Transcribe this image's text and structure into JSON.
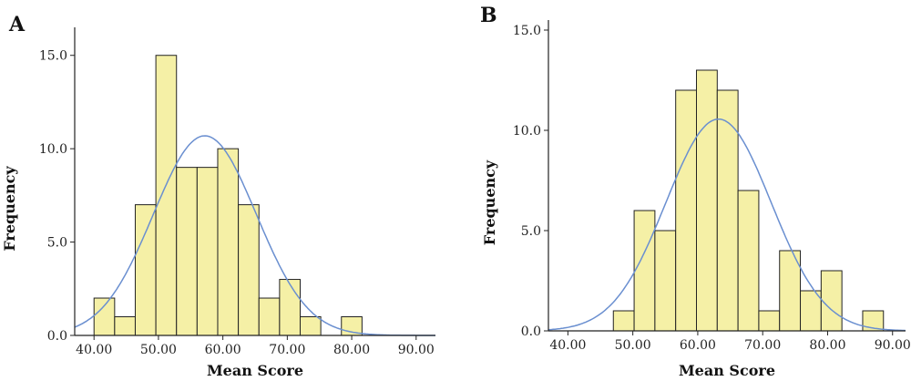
{
  "chart_data": [
    {
      "type": "bar",
      "panel_label": "A",
      "xlabel": "Mean Score",
      "ylabel": "Frequency",
      "xlim": [
        37,
        93
      ],
      "ylim": [
        0,
        16.5
      ],
      "xticks": [
        40,
        50,
        60,
        70,
        80,
        90
      ],
      "xtick_labels": [
        "40.00",
        "50.00",
        "60.00",
        "70.00",
        "80.00",
        "90.00"
      ],
      "yticks": [
        0,
        5,
        10,
        15
      ],
      "ytick_labels": [
        "0.0",
        "5.0",
        "10.0",
        "15.0"
      ],
      "bin_edges": [
        40,
        43.2,
        46.4,
        49.6,
        52.8,
        56,
        59.2,
        62.4,
        65.6,
        68.8,
        72,
        75.2,
        78.4,
        81.6
      ],
      "values": [
        2,
        1,
        7,
        15,
        9,
        9,
        10,
        7,
        2,
        3,
        1,
        0,
        1
      ],
      "normal_curve": {
        "mean": 57.2,
        "sd": 8.0,
        "n": 67,
        "bin_width": 3.2
      },
      "bar_color": "#f5f0a6",
      "curve_color": "#6a8fd0",
      "grid": false
    },
    {
      "type": "bar",
      "panel_label": "B",
      "xlabel": "Mean Score",
      "ylabel": "Frequency",
      "xlim": [
        37,
        92
      ],
      "ylim": [
        0,
        15.5
      ],
      "xticks": [
        40,
        50,
        60,
        70,
        80,
        90
      ],
      "xtick_labels": [
        "40.00",
        "50.00",
        "60.00",
        "70.00",
        "80.00",
        "90.00"
      ],
      "yticks": [
        0,
        5,
        10,
        15
      ],
      "ytick_labels": [
        "0.0",
        "5.0",
        "10.0",
        "15.0"
      ],
      "bin_edges": [
        47,
        50.2,
        53.4,
        56.6,
        59.8,
        63,
        66.2,
        69.4,
        72.6,
        75.8,
        79,
        82.2,
        85.4,
        88.6
      ],
      "values": [
        1,
        6,
        5,
        12,
        13,
        12,
        7,
        1,
        4,
        2,
        3,
        0,
        1
      ],
      "normal_curve": {
        "mean": 63.2,
        "sd": 8.1,
        "n": 67,
        "bin_width": 3.2
      },
      "bar_color": "#f5f0a6",
      "curve_color": "#6a8fd0",
      "grid": false
    }
  ]
}
